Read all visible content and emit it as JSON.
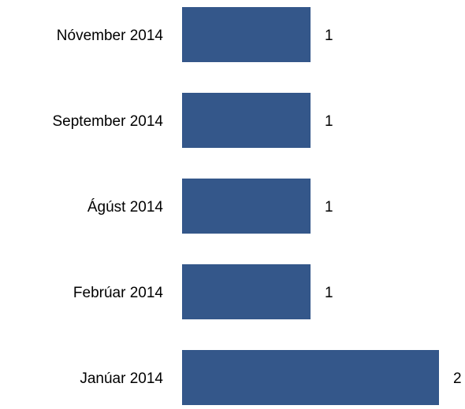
{
  "chart_data": {
    "type": "barh",
    "categories": [
      "Nóvember 2014",
      "September 2014",
      "Ágúst 2014",
      "Febrúar 2014",
      "Janúar 2014"
    ],
    "values": [
      1,
      1,
      1,
      1,
      2
    ],
    "color": "#34578a",
    "xlim": [
      0,
      2
    ]
  }
}
